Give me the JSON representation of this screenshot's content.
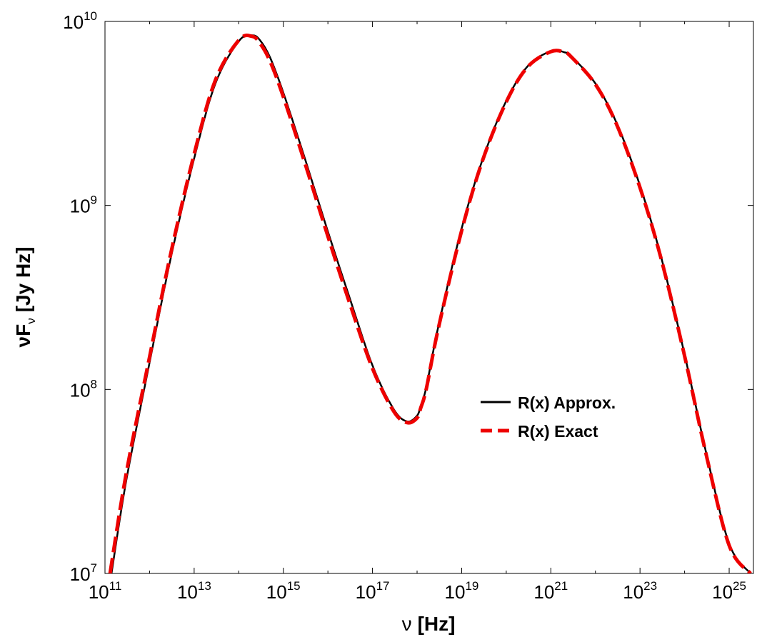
{
  "chart_data": {
    "type": "line",
    "title": "",
    "xscale": "log",
    "yscale": "log",
    "xlim": [
      100000000000.0,
      3.5e+25
    ],
    "ylim": [
      10000000.0,
      10000000000.0
    ],
    "grid": false,
    "legend_position": "center-right",
    "x_ticks": [
      {
        "base": "10",
        "exp": "11",
        "value": 100000000000.0
      },
      {
        "base": "10",
        "exp": "13",
        "value": 10000000000000.0
      },
      {
        "base": "10",
        "exp": "15",
        "value": 1000000000000000.0
      },
      {
        "base": "10",
        "exp": "17",
        "value": 1e+17
      },
      {
        "base": "10",
        "exp": "19",
        "value": 1e+19
      },
      {
        "base": "10",
        "exp": "21",
        "value": 1e+21
      },
      {
        "base": "10",
        "exp": "23",
        "value": 1e+23
      },
      {
        "base": "10",
        "exp": "25",
        "value": 1e+25
      }
    ],
    "y_ticks": [
      {
        "base": "10",
        "exp": "7",
        "value": 10000000.0
      },
      {
        "base": "10",
        "exp": "8",
        "value": 100000000.0
      },
      {
        "base": "10",
        "exp": "9",
        "value": 1000000000.0
      },
      {
        "base": "10",
        "exp": "10",
        "value": 10000000000.0
      }
    ],
    "xlabel": {
      "symbol": "ν",
      "units": "[Hz]"
    },
    "ylabel": {
      "symbol": "νF",
      "sub": "ν",
      "units": "[Jy Hz]"
    },
    "series": [
      {
        "name": "R(x) Approx.",
        "color": "#000000",
        "style": "solid",
        "x": [
          140000000000.0,
          300000000000.0,
          1000000000000.0,
          3000000000000.0,
          10000000000000.0,
          30000000000000.0,
          100000000000000.0,
          200000000000000.0,
          300000000000000.0,
          500000000000000.0,
          1000000000000000.0,
          3000000000000000.0,
          1e+16,
          3e+16,
          1e+17,
          3e+17,
          6e+17,
          1e+18,
          1.2e+18,
          1.6e+18,
          3e+18,
          1e+19,
          3e+19,
          1e+20,
          3e+20,
          1e+21,
          2e+21,
          3e+21,
          1e+22,
          3e+22,
          1e+23,
          3e+23,
          1e+24,
          3e+24,
          1e+25,
          3e+25
        ],
        "y": [
          10000000.0,
          32000000.0,
          140000000.0,
          520000000.0,
          1800000000.0,
          4600000000.0,
          7800000000.0,
          8400000000.0,
          7900000000.0,
          6400000000.0,
          4100000000.0,
          1820000000.0,
          720000000.0,
          320000000.0,
          135000000.0,
          78000000.0,
          67000000.0,
          72000000.0,
          81000000.0,
          102000000.0,
          220000000.0,
          750000000.0,
          1800000000.0,
          3700000000.0,
          5700000000.0,
          6900000000.0,
          6800000000.0,
          6400000000.0,
          4600000000.0,
          2800000000.0,
          1280000000.0,
          520000000.0,
          155000000.0,
          46000000.0,
          14500000.0,
          10000000.0
        ]
      },
      {
        "name": "R(x) Exact",
        "color": "#ee0000",
        "style": "dashed",
        "x": [
          130000000000.0,
          300000000000.0,
          1000000000000.0,
          3000000000000.0,
          10000000000000.0,
          30000000000000.0,
          100000000000000.0,
          200000000000000.0,
          300000000000000.0,
          500000000000000.0,
          1000000000000000.0,
          3000000000000000.0,
          1e+16,
          3e+16,
          1e+17,
          3e+17,
          6e+17,
          1e+18,
          1.2e+18,
          1.6e+18,
          3e+18,
          1e+19,
          3e+19,
          1e+20,
          3e+20,
          1e+21,
          2e+21,
          3e+21,
          1e+22,
          3e+22,
          1e+23,
          3e+23,
          1e+24,
          3e+24,
          1e+25,
          3e+25
        ],
        "y": [
          10000000.0,
          35000000.0,
          150000000.0,
          550000000.0,
          1900000000.0,
          4800000000.0,
          7900000000.0,
          8300000000.0,
          7600000000.0,
          6100000000.0,
          3900000000.0,
          1720000000.0,
          680000000.0,
          300000000.0,
          130000000.0,
          76000000.0,
          66000000.0,
          70000000.0,
          79000000.0,
          100000000.0,
          215000000.0,
          730000000.0,
          1780000000.0,
          3650000000.0,
          5650000000.0,
          6850000000.0,
          6800000000.0,
          6350000000.0,
          4550000000.0,
          2750000000.0,
          1250000000.0,
          510000000.0,
          152000000.0,
          45000000.0,
          14200000.0,
          10000000.0
        ]
      }
    ]
  }
}
